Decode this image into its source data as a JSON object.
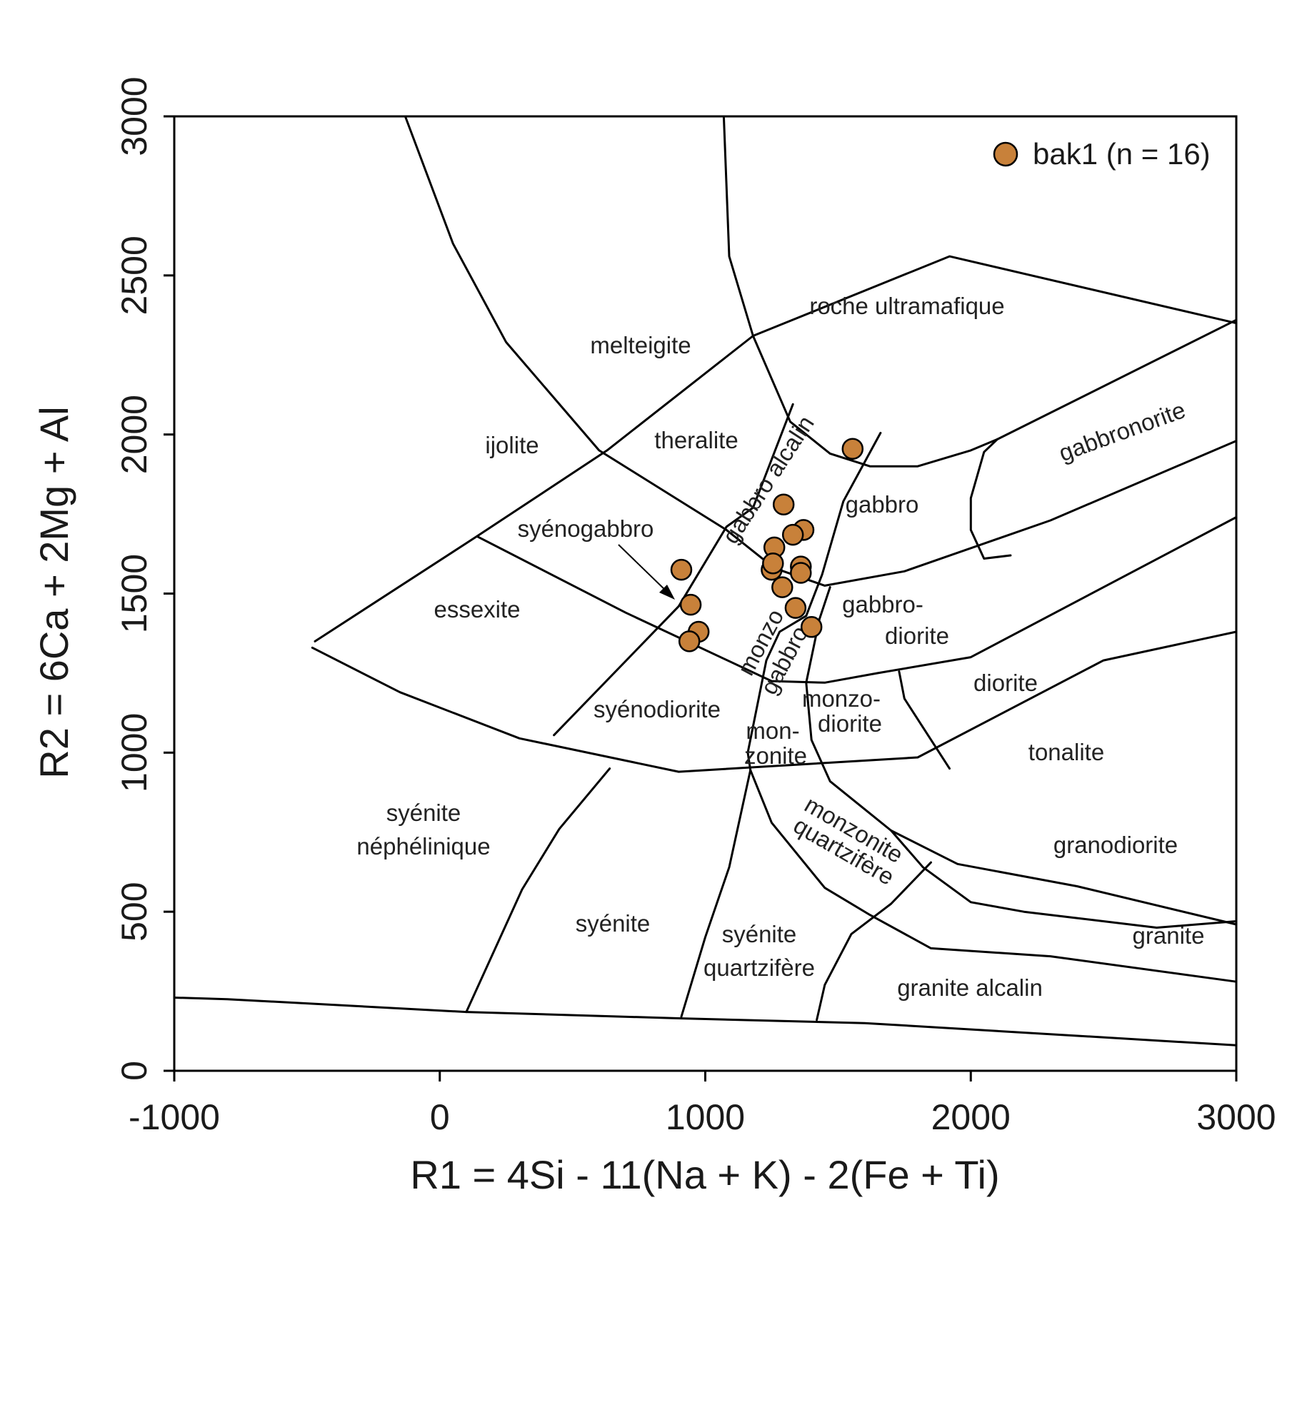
{
  "chart_data": {
    "type": "scatter",
    "title": "",
    "xlabel": "R1 = 4Si - 11(Na + K) - 2(Fe + Ti)",
    "ylabel": "R2 = 6Ca + 2Mg + Al",
    "xlim": [
      -1000,
      3000
    ],
    "ylim": [
      0,
      3000
    ],
    "x_ticks": [
      -1000,
      0,
      1000,
      2000,
      3000
    ],
    "y_ticks": [
      0,
      500,
      1000,
      1500,
      2000,
      2500,
      3000
    ],
    "x_tick_labels": [
      "-1000",
      "0",
      "1000",
      "2000",
      "3000"
    ],
    "y_tick_labels": [
      "0",
      "500",
      "1000",
      "1500",
      "2000",
      "2500",
      "3000"
    ],
    "grid": false,
    "legend": {
      "position": "top-right",
      "entries": [
        "bak1 (n = 16)"
      ]
    },
    "series": [
      {
        "name": "bak1 (n = 16)",
        "color": "#C8813A",
        "points": [
          {
            "x": 1555,
            "y": 1955
          },
          {
            "x": 1295,
            "y": 1780
          },
          {
            "x": 1370,
            "y": 1700
          },
          {
            "x": 1330,
            "y": 1685
          },
          {
            "x": 1260,
            "y": 1645
          },
          {
            "x": 1250,
            "y": 1575
          },
          {
            "x": 1255,
            "y": 1595
          },
          {
            "x": 1360,
            "y": 1585
          },
          {
            "x": 1360,
            "y": 1565
          },
          {
            "x": 1290,
            "y": 1520
          },
          {
            "x": 910,
            "y": 1575
          },
          {
            "x": 945,
            "y": 1465
          },
          {
            "x": 1340,
            "y": 1455
          },
          {
            "x": 1400,
            "y": 1395
          },
          {
            "x": 975,
            "y": 1380
          },
          {
            "x": 940,
            "y": 1350
          }
        ]
      }
    ],
    "annotations": [
      {
        "text": "roche ultramafique"
      },
      {
        "text": "melteigite"
      },
      {
        "text": "ijolite"
      },
      {
        "text": "theralite"
      },
      {
        "text": "gabbro alcalin"
      },
      {
        "text": "gabbro"
      },
      {
        "text": "gabbronorite"
      },
      {
        "text": "syénogabbro"
      },
      {
        "text": "essexite"
      },
      {
        "text": "monzo"
      },
      {
        "text": "gabbro"
      },
      {
        "text": "gabbro-"
      },
      {
        "text": "diorite"
      },
      {
        "text": "diorite"
      },
      {
        "text": "syénodiorite"
      },
      {
        "text": "monzo-"
      },
      {
        "text": "diorite"
      },
      {
        "text": "mon-"
      },
      {
        "text": "zonite"
      },
      {
        "text": "tonalite"
      },
      {
        "text": "syénite"
      },
      {
        "text": "néphélinique"
      },
      {
        "text": "monzonite"
      },
      {
        "text": "quartzifère"
      },
      {
        "text": "granodiorite"
      },
      {
        "text": "syénite"
      },
      {
        "text": "syénite"
      },
      {
        "text": "quartzifère"
      },
      {
        "text": "granite"
      },
      {
        "text": "granite alcalin"
      }
    ]
  }
}
